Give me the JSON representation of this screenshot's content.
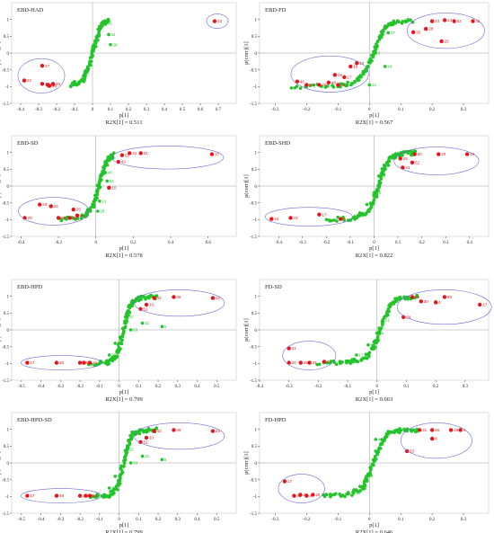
{
  "colors": {
    "green": "#22c42a",
    "red": "#e8141b",
    "ellipse": "#6b6bd8",
    "axis": "#333333",
    "grid": "#999999"
  },
  "chart_data": [
    {
      "type": "scatter",
      "title": "EBD-HAD",
      "xlabel": "p[1]",
      "ylabel": "p(corr)[1]",
      "r2x": "R2X[1] = 0.511",
      "xlim": [
        -0.45,
        0.8
      ],
      "ylim": [
        -1.5,
        1.5
      ],
      "xticks": [
        "-0.4",
        "-0.3",
        "-0.2",
        "-0.1",
        "0",
        "0.1",
        "0.2",
        "0.3",
        "0.4",
        "0.5",
        "0.6",
        "0.7"
      ],
      "yticks": [
        "-1.5",
        "-1",
        "-0.5",
        "0",
        "0.5",
        "1"
      ],
      "curve": [
        [
          -0.12,
          -0.98
        ],
        [
          -0.05,
          -0.8
        ],
        [
          -0.02,
          -0.4
        ],
        [
          0.0,
          0.0
        ],
        [
          0.02,
          0.35
        ],
        [
          0.04,
          0.7
        ],
        [
          0.06,
          0.88
        ],
        [
          0.09,
          0.95
        ]
      ],
      "red_points": [
        [
          -0.38,
          -0.82,
          "22"
        ],
        [
          -0.28,
          -0.92,
          "10"
        ],
        [
          -0.25,
          -0.95,
          "20"
        ],
        [
          -0.24,
          -0.98,
          "26"
        ],
        [
          -0.22,
          -0.92,
          "49"
        ],
        [
          -0.28,
          -0.38,
          "17"
        ],
        [
          0.68,
          0.95,
          "23"
        ]
      ],
      "green_labels": [
        [
          0.07,
          0.88,
          "36"
        ],
        [
          0.09,
          0.55,
          "42"
        ],
        [
          0.1,
          0.25,
          "28"
        ],
        [
          -0.1,
          -0.85,
          "41"
        ],
        [
          -0.06,
          -0.8,
          "8"
        ]
      ]
    },
    {
      "type": "scatter",
      "title": "EBD-FD",
      "xlabel": "p[1]",
      "ylabel": "p(corr)[1]",
      "r2x": "R2X[1] = 0.567",
      "xlim": [
        -0.35,
        0.38
      ],
      "ylim": [
        -1.5,
        1.5
      ],
      "xticks": [
        "-0.3",
        "-0.2",
        "-0.1",
        "0",
        "0.1",
        "0.2",
        "0.3"
      ],
      "yticks": [
        "-1.5",
        "-1",
        "-0.5",
        "0",
        "0.5",
        "1"
      ],
      "curve": [
        [
          -0.25,
          -1.0
        ],
        [
          -0.1,
          -0.97
        ],
        [
          -0.04,
          -0.85
        ],
        [
          -0.01,
          -0.5
        ],
        [
          0.01,
          -0.1
        ],
        [
          0.03,
          0.4
        ],
        [
          0.05,
          0.75
        ],
        [
          0.08,
          0.92
        ],
        [
          0.14,
          0.97
        ]
      ],
      "red_points": [
        [
          -0.23,
          -0.85,
          "46"
        ],
        [
          -0.2,
          -0.95,
          "20"
        ],
        [
          -0.16,
          -0.95,
          "26"
        ],
        [
          -0.13,
          -0.88,
          "49"
        ],
        [
          -0.1,
          -0.95,
          "41"
        ],
        [
          -0.08,
          -0.72,
          "17"
        ],
        [
          -0.11,
          -0.65,
          "29"
        ],
        [
          -0.04,
          -0.3,
          "10"
        ],
        [
          -0.06,
          -0.4,
          "16"
        ],
        [
          0.2,
          0.95,
          "23"
        ],
        [
          0.24,
          0.98,
          "13"
        ],
        [
          0.27,
          0.95,
          "52"
        ],
        [
          0.33,
          0.95,
          "42"
        ],
        [
          0.18,
          0.72,
          "28"
        ],
        [
          0.14,
          0.62,
          "30"
        ],
        [
          0.23,
          0.35,
          "25"
        ]
      ],
      "green_labels": [
        [
          0.02,
          0.0,
          "9"
        ],
        [
          0.05,
          -0.4,
          "44"
        ],
        [
          0.0,
          -0.95,
          "12"
        ],
        [
          0.06,
          0.6,
          "37"
        ]
      ]
    },
    {
      "type": "scatter",
      "title": "EBD-SD",
      "xlabel": "p[1]",
      "ylabel": "p(corr)[1]",
      "r2x": "R2X[1] = 0.578",
      "xlim": [
        -0.45,
        0.75
      ],
      "ylim": [
        -1.5,
        1.5
      ],
      "xticks": [
        "-0.4",
        "-0.2",
        "0",
        "0.2",
        "0.4",
        "0.6"
      ],
      "yticks": [
        "-1.5",
        "-1",
        "-0.5",
        "0",
        "0.5",
        "1"
      ],
      "curve": [
        [
          -0.2,
          -1.0
        ],
        [
          -0.07,
          -0.92
        ],
        [
          -0.02,
          -0.65
        ],
        [
          0.0,
          -0.3
        ],
        [
          0.02,
          0.1
        ],
        [
          0.04,
          0.45
        ],
        [
          0.06,
          0.78
        ],
        [
          0.1,
          0.95
        ]
      ],
      "red_points": [
        [
          -0.38,
          -0.95,
          "20"
        ],
        [
          -0.3,
          -0.55,
          "23"
        ],
        [
          -0.24,
          -0.6,
          "24"
        ],
        [
          -0.2,
          -0.95,
          "59"
        ],
        [
          -0.14,
          -0.95,
          "36"
        ],
        [
          -0.12,
          -0.7,
          "25"
        ],
        [
          -0.1,
          -0.88,
          "46"
        ],
        [
          0.18,
          0.98,
          "41"
        ],
        [
          0.24,
          0.98,
          "31"
        ],
        [
          0.14,
          0.92,
          "52"
        ],
        [
          0.12,
          0.72,
          "42"
        ],
        [
          0.62,
          0.95,
          "17"
        ],
        [
          0.07,
          -0.05,
          "10"
        ]
      ],
      "green_labels": [
        [
          0.07,
          0.85,
          "3"
        ],
        [
          0.05,
          0.4,
          "40"
        ],
        [
          0.06,
          0.15,
          "53"
        ],
        [
          0.02,
          -0.45,
          "21"
        ],
        [
          0.01,
          -0.75,
          "28"
        ]
      ]
    },
    {
      "type": "scatter",
      "title": "EBD-SHD",
      "xlabel": "p[1]",
      "ylabel": "p(corr)[1]",
      "r2x": "R2X[1] = 0.822",
      "xlim": [
        -0.48,
        0.48
      ],
      "ylim": [
        -1.5,
        1.5
      ],
      "xticks": [
        "-0.4",
        "-0.3",
        "-0.2",
        "-0.1",
        "0",
        "0.1",
        "0.2",
        "0.3",
        "0.4"
      ],
      "yticks": [
        "-1.5",
        "-1",
        "-0.5",
        "0",
        "0.5",
        "1"
      ],
      "curve": [
        [
          -0.2,
          -1.0
        ],
        [
          -0.08,
          -0.96
        ],
        [
          -0.03,
          -0.8
        ],
        [
          0.0,
          -0.4
        ],
        [
          0.02,
          0.0
        ],
        [
          0.04,
          0.5
        ],
        [
          0.07,
          0.85
        ],
        [
          0.12,
          0.97
        ],
        [
          0.18,
          0.99
        ]
      ],
      "red_points": [
        [
          -0.43,
          -0.98,
          "54"
        ],
        [
          -0.35,
          -0.95,
          "23"
        ],
        [
          -0.23,
          -0.85,
          "17"
        ],
        [
          -0.14,
          -0.98,
          "6"
        ],
        [
          0.17,
          0.95,
          "50"
        ],
        [
          0.27,
          0.95,
          "20"
        ],
        [
          0.39,
          0.95,
          "49"
        ],
        [
          0.16,
          0.7,
          "52"
        ],
        [
          0.12,
          0.55,
          "31"
        ],
        [
          0.11,
          0.82,
          "42"
        ]
      ],
      "green_labels": [
        [
          0.02,
          0.3,
          "22"
        ],
        [
          0.0,
          -0.2,
          "39"
        ],
        [
          -0.03,
          -0.55,
          "40"
        ],
        [
          -0.06,
          -0.8,
          "21"
        ],
        [
          0.08,
          0.92,
          "5"
        ]
      ]
    },
    {
      "type": "scatter",
      "title": "EBD-HPD",
      "xlabel": "p[1]",
      "ylabel": "p(corr)[1]",
      "r2x": "R2X[1] = 0.799",
      "xlim": [
        -0.55,
        0.6
      ],
      "ylim": [
        -1.5,
        1.5
      ],
      "xticks": [
        "-0.5",
        "-0.4",
        "-0.3",
        "-0.2",
        "-0.1",
        "0",
        "0.1",
        "0.2",
        "0.3",
        "0.4",
        "0.5"
      ],
      "yticks": [
        "-1.5",
        "-1",
        "-0.5",
        "0",
        "0.5",
        "1"
      ],
      "curve": [
        [
          -0.15,
          -1.0
        ],
        [
          -0.05,
          -0.97
        ],
        [
          -0.01,
          -0.75
        ],
        [
          0.01,
          -0.3
        ],
        [
          0.03,
          0.2
        ],
        [
          0.05,
          0.6
        ],
        [
          0.07,
          0.88
        ],
        [
          0.12,
          0.97
        ],
        [
          0.2,
          0.99
        ]
      ],
      "red_points": [
        [
          -0.47,
          -0.98,
          "17"
        ],
        [
          -0.32,
          -0.98,
          "48"
        ],
        [
          -0.2,
          -0.98,
          "20"
        ],
        [
          -0.18,
          -0.98,
          "49"
        ],
        [
          -0.15,
          -0.98,
          "10"
        ],
        [
          0.18,
          0.95,
          "42"
        ],
        [
          0.28,
          0.98,
          "49"
        ],
        [
          0.48,
          0.95,
          "23"
        ],
        [
          0.14,
          0.75,
          "10"
        ],
        [
          0.11,
          0.62,
          "51"
        ]
      ],
      "green_labels": [
        [
          0.04,
          0.4,
          "52"
        ],
        [
          0.06,
          0.0,
          "53"
        ],
        [
          -0.02,
          -0.4,
          "28"
        ],
        [
          -0.05,
          -0.75,
          "39"
        ],
        [
          0.12,
          0.2,
          "31"
        ],
        [
          0.22,
          0.1,
          "5"
        ]
      ]
    },
    {
      "type": "scatter",
      "title": "FD-SD",
      "xlabel": "p[1]",
      "ylabel": "p(corr)[1]",
      "r2x": "R2X[1] = 0.663",
      "xlim": [
        -0.4,
        0.38
      ],
      "ylim": [
        -1.5,
        1.5
      ],
      "xticks": [
        "-0.4",
        "-0.3",
        "-0.2",
        "-0.1",
        "0",
        "0.1",
        "0.2",
        "0.3"
      ],
      "yticks": [
        "-1.5",
        "-1",
        "-0.5",
        "0",
        "0.5",
        "1"
      ],
      "curve": [
        [
          -0.2,
          -1.0
        ],
        [
          -0.1,
          -0.97
        ],
        [
          -0.04,
          -0.85
        ],
        [
          -0.01,
          -0.5
        ],
        [
          0.01,
          0.0
        ],
        [
          0.03,
          0.45
        ],
        [
          0.05,
          0.8
        ],
        [
          0.08,
          0.95
        ],
        [
          0.14,
          0.98
        ]
      ],
      "red_points": [
        [
          -0.3,
          -0.55,
          "21"
        ],
        [
          -0.3,
          -0.98,
          "20"
        ],
        [
          -0.26,
          -0.98,
          "26"
        ],
        [
          -0.23,
          -0.98,
          "31"
        ],
        [
          -0.18,
          -0.95,
          "2"
        ],
        [
          0.12,
          0.98,
          "59"
        ],
        [
          0.15,
          0.85,
          "30"
        ],
        [
          0.23,
          0.98,
          "50"
        ],
        [
          0.2,
          0.82,
          "4"
        ],
        [
          0.35,
          0.75,
          "17"
        ],
        [
          0.09,
          0.38,
          "29"
        ]
      ],
      "green_labels": [
        [
          0.02,
          0.3,
          "51"
        ],
        [
          0.0,
          -0.1,
          "44"
        ],
        [
          -0.03,
          -0.45,
          "12"
        ],
        [
          -0.07,
          -0.75,
          "17"
        ],
        [
          -0.1,
          -0.95,
          "46"
        ]
      ]
    },
    {
      "type": "scatter",
      "title": "EBD-HPD-SD",
      "xlabel": "p[1]",
      "ylabel": "p(corr)[1]",
      "r2x": "R2X[1] = 0.799",
      "xlim": [
        -0.55,
        0.6
      ],
      "ylim": [
        -1.5,
        1.5
      ],
      "xticks": [
        "-0.5",
        "-0.4",
        "-0.3",
        "-0.2",
        "-0.1",
        "0",
        "0.1",
        "0.2",
        "0.3",
        "0.4",
        "0.5"
      ],
      "yticks": [
        "-1.5",
        "-1",
        "-0.5",
        "0",
        "0.5",
        "1"
      ],
      "curve": [
        [
          -0.15,
          -1.0
        ],
        [
          -0.05,
          -0.97
        ],
        [
          -0.01,
          -0.75
        ],
        [
          0.01,
          -0.3
        ],
        [
          0.03,
          0.2
        ],
        [
          0.05,
          0.6
        ],
        [
          0.07,
          0.88
        ],
        [
          0.12,
          0.97
        ],
        [
          0.2,
          0.99
        ]
      ],
      "red_points": [
        [
          -0.47,
          -0.98,
          "17"
        ],
        [
          -0.32,
          -0.98,
          "48"
        ],
        [
          -0.2,
          -0.98,
          "20"
        ],
        [
          -0.17,
          -0.98,
          "49"
        ],
        [
          -0.15,
          -0.98,
          "10"
        ],
        [
          0.18,
          0.95,
          "42"
        ],
        [
          0.28,
          0.98,
          "49"
        ],
        [
          0.48,
          0.95,
          "23"
        ],
        [
          0.14,
          0.75,
          "10"
        ],
        [
          0.11,
          0.62,
          "51"
        ]
      ],
      "green_labels": [
        [
          0.04,
          0.4,
          "52"
        ],
        [
          0.06,
          0.0,
          "53"
        ],
        [
          -0.02,
          -0.4,
          "28"
        ],
        [
          -0.05,
          -0.75,
          "39"
        ],
        [
          0.12,
          0.2,
          "31"
        ],
        [
          0.22,
          0.1,
          "5"
        ]
      ]
    },
    {
      "type": "scatter",
      "title": "FD-HPD",
      "xlabel": "p[1]",
      "ylabel": "p(corr)[1]",
      "r2x": "R2X[1] = 0.646",
      "xlim": [
        -0.35,
        0.38
      ],
      "ylim": [
        -1.5,
        1.5
      ],
      "xticks": [
        "-0.3",
        "-0.2",
        "-0.1",
        "0",
        "0.1",
        "0.2",
        "0.3"
      ],
      "yticks": [
        "-1.5",
        "-1",
        "-0.5",
        "0",
        "0.5",
        "1"
      ],
      "curve": [
        [
          -0.15,
          -1.0
        ],
        [
          -0.07,
          -0.95
        ],
        [
          -0.02,
          -0.75
        ],
        [
          0.0,
          -0.3
        ],
        [
          0.02,
          0.2
        ],
        [
          0.04,
          0.6
        ],
        [
          0.06,
          0.88
        ],
        [
          0.1,
          0.97
        ],
        [
          0.16,
          0.99
        ]
      ],
      "red_points": [
        [
          -0.27,
          -0.55,
          "17"
        ],
        [
          -0.24,
          -0.98,
          "42"
        ],
        [
          -0.22,
          -0.95,
          "20"
        ],
        [
          -0.2,
          -0.98,
          "47"
        ],
        [
          -0.18,
          -0.95,
          "20"
        ],
        [
          0.16,
          0.98,
          "31"
        ],
        [
          0.2,
          0.98,
          "46"
        ],
        [
          0.26,
          0.98,
          "49"
        ],
        [
          0.29,
          0.98,
          "4"
        ],
        [
          0.2,
          0.72,
          "8"
        ],
        [
          0.12,
          0.35,
          "53"
        ]
      ],
      "green_labels": [
        [
          0.02,
          0.7,
          "44"
        ],
        [
          0.02,
          0.35,
          "7"
        ],
        [
          -0.01,
          -0.4,
          "19"
        ],
        [
          -0.03,
          -0.7,
          "16"
        ],
        [
          -0.05,
          -0.9,
          "13"
        ]
      ]
    }
  ]
}
